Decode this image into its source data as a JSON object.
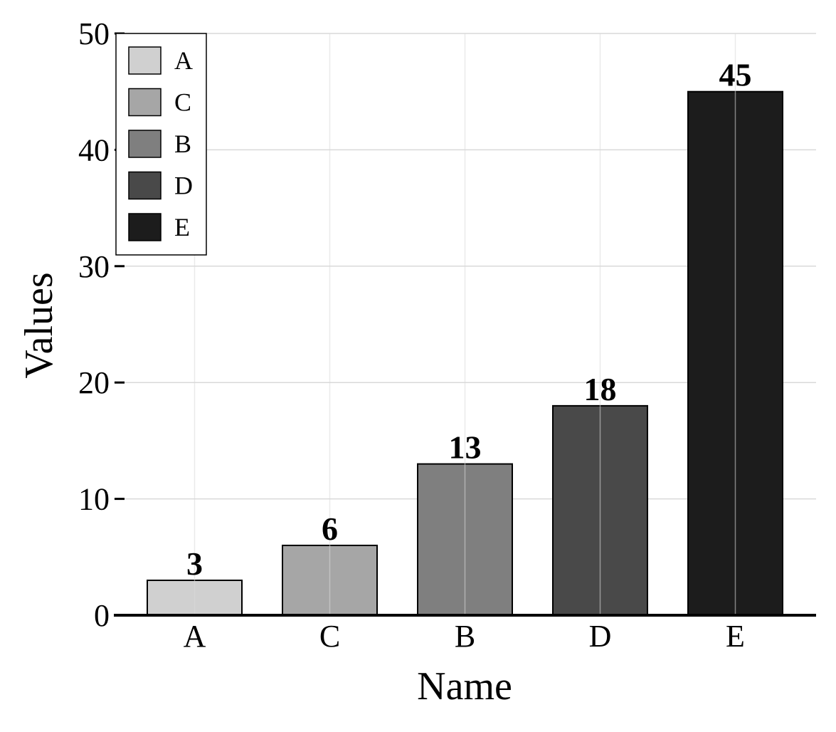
{
  "chart_data": {
    "type": "bar",
    "categories": [
      "A",
      "C",
      "B",
      "D",
      "E"
    ],
    "values": [
      3,
      6,
      13,
      18,
      45
    ],
    "colors": [
      "#d0d0d0",
      "#a6a6a6",
      "#7f7f7f",
      "#494949",
      "#1c1c1c"
    ],
    "data_labels": [
      "3",
      "6",
      "13",
      "18",
      "45"
    ],
    "xlabel": "Name",
    "ylabel": "Values",
    "ylim": [
      0,
      50
    ],
    "yticks": [
      0,
      10,
      20,
      30,
      40,
      50
    ],
    "ytick_labels": [
      "0",
      "10",
      "20",
      "30",
      "40",
      "50"
    ],
    "grid": true,
    "legend": {
      "placement": "top-left",
      "entries": [
        "A",
        "C",
        "B",
        "D",
        "E"
      ]
    }
  }
}
